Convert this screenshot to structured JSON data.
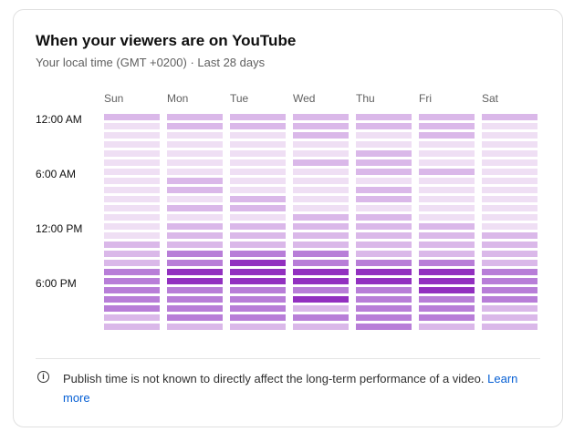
{
  "title": "When your viewers are on YouTube",
  "subtitle": "Your local time (GMT +0200) · Last 28 days",
  "footer": {
    "note": "Publish time is not known to directly affect the long-term performance of a video.",
    "link": "Learn more"
  },
  "chart_data": {
    "type": "heatmap",
    "title": "When your viewers are on YouTube",
    "columns": [
      "Sun",
      "Mon",
      "Tue",
      "Wed",
      "Thu",
      "Fri",
      "Sat"
    ],
    "row_tick_labels": [
      "12:00 AM",
      "6:00 AM",
      "12:00 PM",
      "6:00 PM"
    ],
    "rows": 24,
    "value_scale": "relative activity level 0 (lowest) to 3 (highest)",
    "colors": [
      "#efdff4",
      "#dab8e9",
      "#b87ed8",
      "#9230c0"
    ],
    "values": [
      [
        1,
        0,
        0,
        0,
        0,
        0,
        0,
        0,
        0,
        0,
        0,
        0,
        0,
        0,
        1,
        1,
        1,
        2,
        2,
        2,
        2,
        2,
        1,
        1
      ],
      [
        1,
        1,
        0,
        0,
        0,
        0,
        0,
        1,
        1,
        0,
        1,
        0,
        1,
        1,
        1,
        2,
        2,
        3,
        3,
        2,
        2,
        2,
        2,
        1
      ],
      [
        1,
        1,
        0,
        0,
        0,
        0,
        0,
        0,
        0,
        1,
        1,
        0,
        1,
        1,
        1,
        2,
        3,
        3,
        3,
        2,
        2,
        2,
        2,
        1
      ],
      [
        1,
        1,
        1,
        0,
        0,
        1,
        0,
        0,
        0,
        0,
        0,
        1,
        1,
        1,
        1,
        2,
        2,
        3,
        3,
        2,
        3,
        1,
        2,
        1
      ],
      [
        1,
        1,
        0,
        0,
        1,
        1,
        1,
        0,
        1,
        1,
        0,
        1,
        1,
        1,
        1,
        1,
        2,
        3,
        3,
        2,
        2,
        2,
        2,
        2
      ],
      [
        1,
        1,
        1,
        0,
        0,
        0,
        1,
        0,
        0,
        0,
        0,
        0,
        1,
        1,
        1,
        1,
        2,
        3,
        3,
        3,
        2,
        2,
        2,
        1
      ],
      [
        1,
        0,
        0,
        0,
        0,
        0,
        0,
        0,
        0,
        0,
        0,
        0,
        0,
        1,
        1,
        1,
        1,
        2,
        2,
        2,
        2,
        1,
        1,
        1
      ]
    ]
  }
}
